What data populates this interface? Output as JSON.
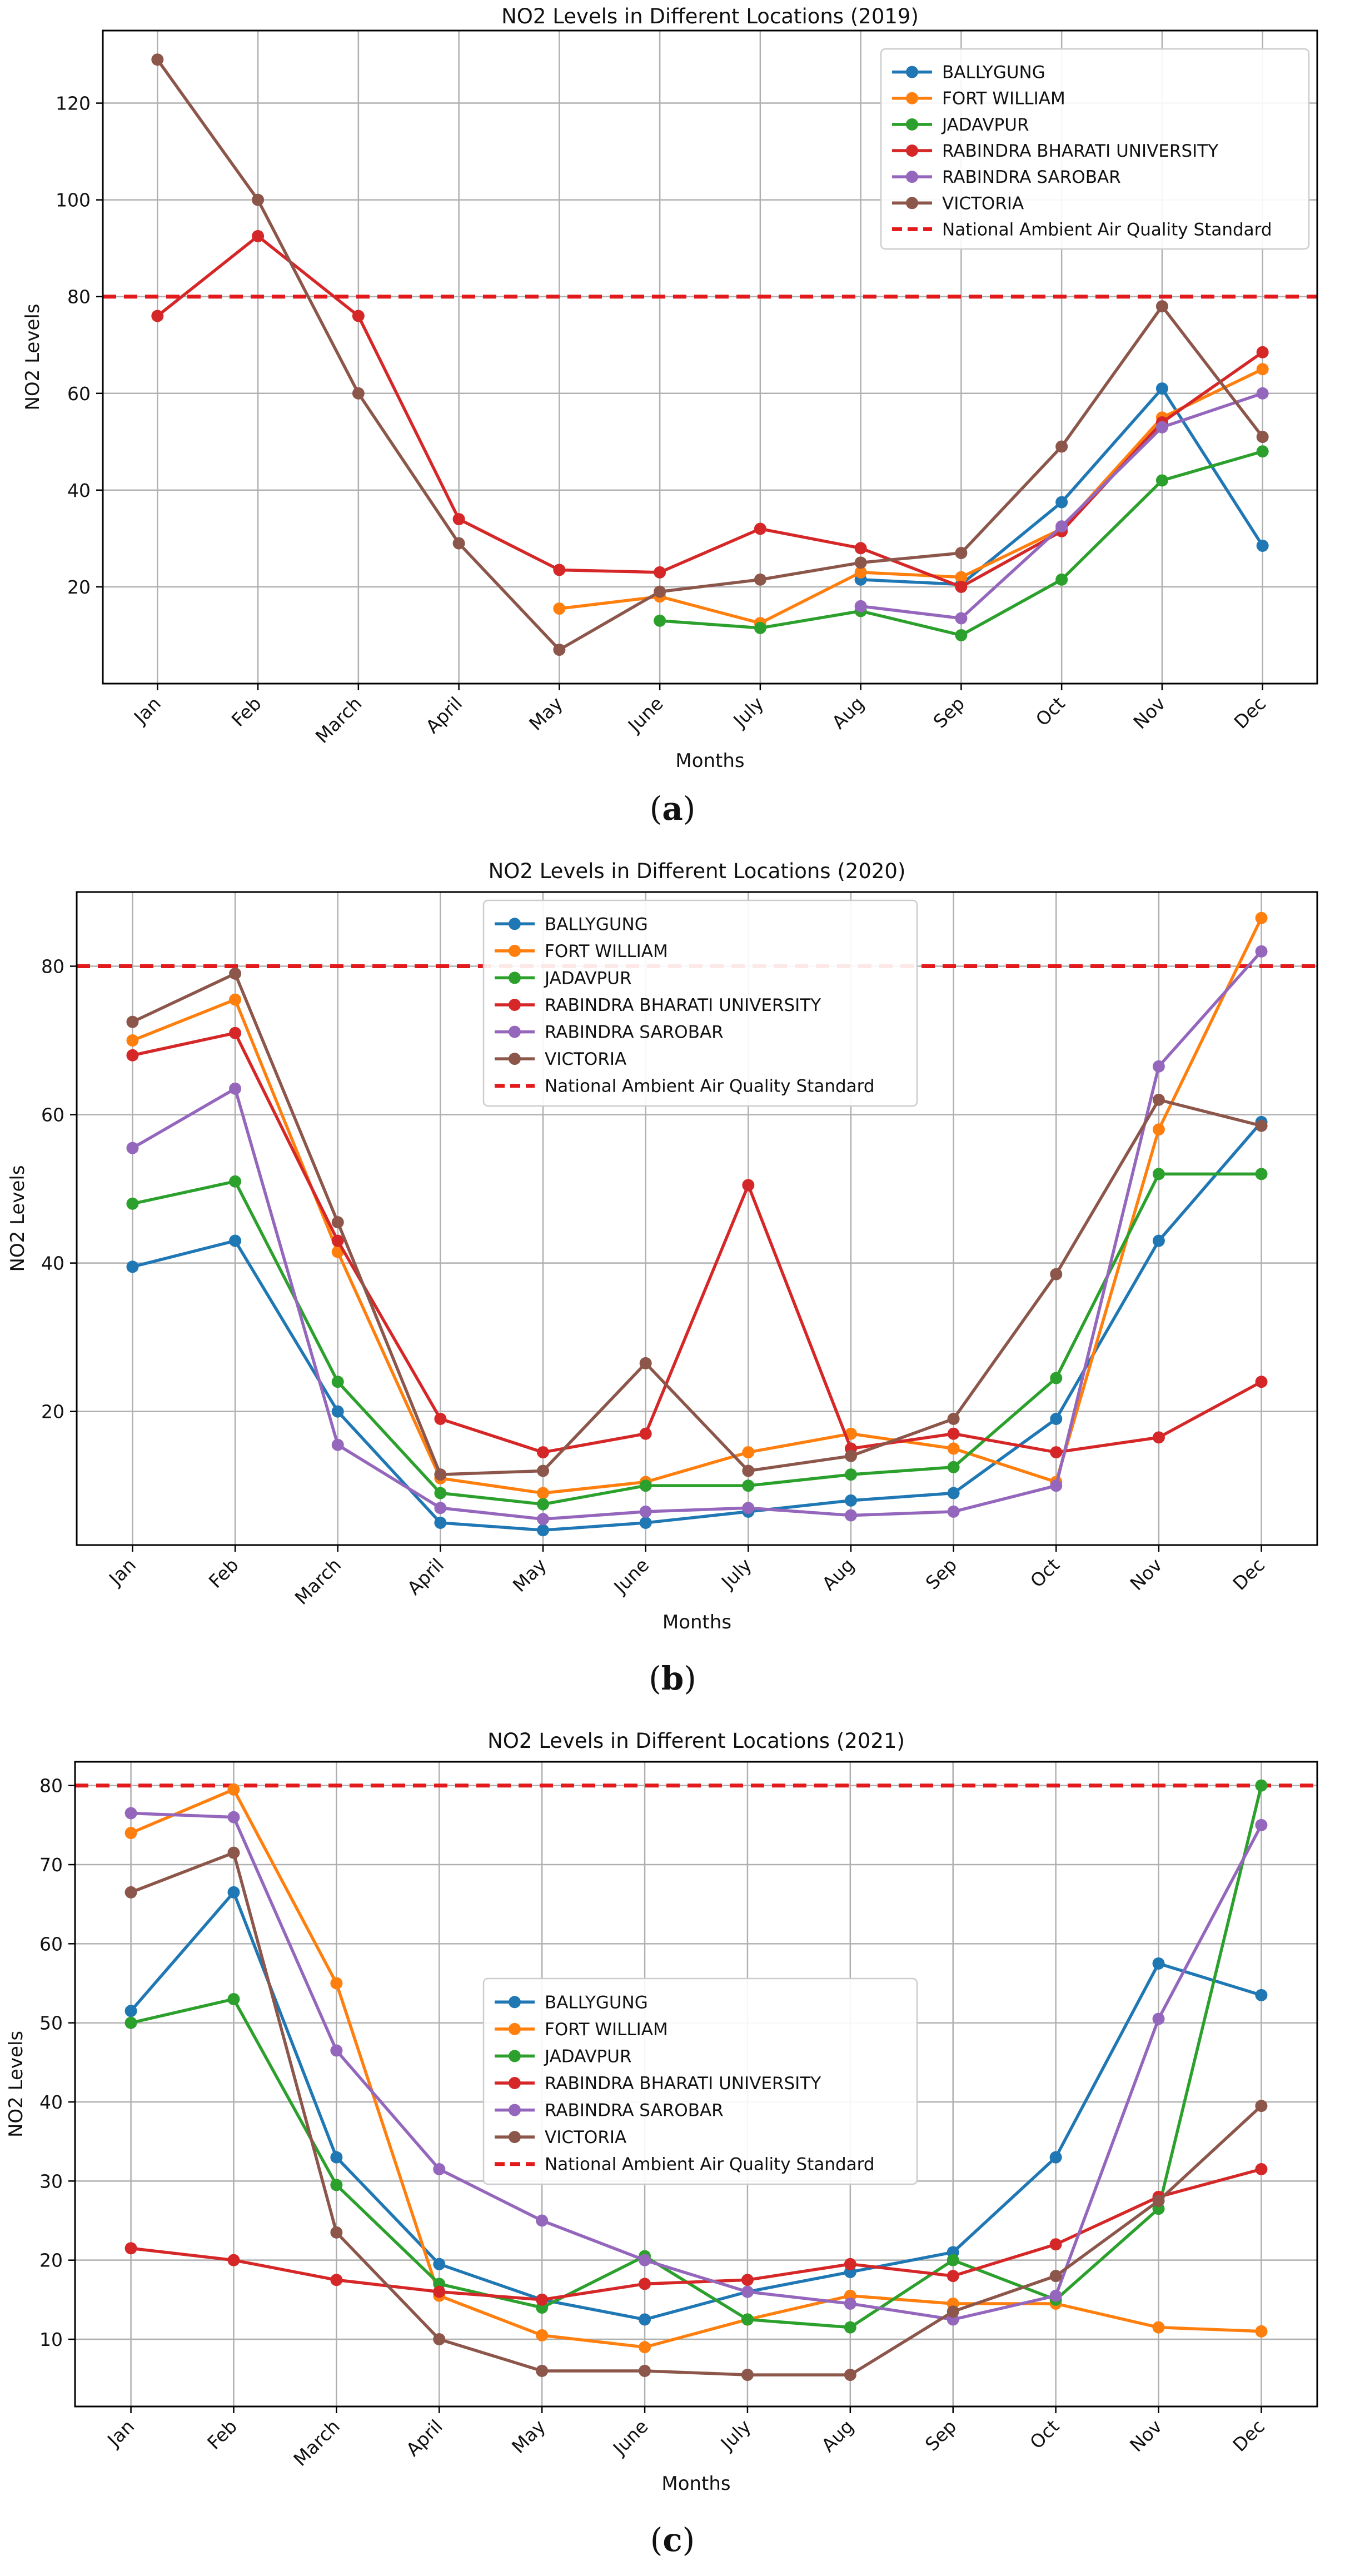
{
  "colors": {
    "BALLYGUNG": "#1f77b4",
    "FORT WILLIAM": "#ff7f0e",
    "JADAVPUR": "#2ca02c",
    "RABINDRA BHARATI UNIVERSITY": "#d62728",
    "RABINDRA SAROBAR": "#9467bd",
    "VICTORIA": "#8c564b",
    "standard": "#e31a1c",
    "grid": "#b0b0b0"
  },
  "chart_data": [
    {
      "type": "line",
      "caption": "a",
      "title": "NO2 Levels in Different Locations (2019)",
      "xlabel": "Months",
      "ylabel": "NO2 Levels",
      "categories": [
        "Jan",
        "Feb",
        "March",
        "April",
        "May",
        "June",
        "July",
        "Aug",
        "Sep",
        "Oct",
        "Nov",
        "Dec"
      ],
      "ylim": [
        0,
        135
      ],
      "yticks": [
        20,
        40,
        60,
        80,
        100,
        120
      ],
      "grid": true,
      "legend_position": "top-right",
      "standard": {
        "label": "National Ambient Air Quality Standard",
        "value": 80
      },
      "series": [
        {
          "name": "BALLYGUNG",
          "values": [
            null,
            null,
            null,
            null,
            null,
            null,
            null,
            21.5,
            20.5,
            37.5,
            61,
            28.5
          ]
        },
        {
          "name": "FORT WILLIAM",
          "values": [
            null,
            null,
            null,
            null,
            15.5,
            18,
            12.5,
            23,
            22,
            32,
            55,
            65
          ]
        },
        {
          "name": "JADAVPUR",
          "values": [
            null,
            null,
            null,
            null,
            null,
            13,
            11.5,
            15,
            10,
            21.5,
            42,
            48
          ]
        },
        {
          "name": "RABINDRA BHARATI UNIVERSITY",
          "values": [
            76,
            92.5,
            76,
            34,
            23.5,
            23,
            32,
            28,
            20,
            31.5,
            54,
            68.5
          ]
        },
        {
          "name": "RABINDRA SAROBAR",
          "values": [
            null,
            null,
            null,
            null,
            null,
            null,
            null,
            16,
            13.5,
            32.5,
            53,
            60
          ]
        },
        {
          "name": "VICTORIA",
          "values": [
            129,
            100,
            60,
            29,
            7,
            19,
            21.5,
            25,
            27,
            49,
            78,
            51
          ]
        }
      ]
    },
    {
      "type": "line",
      "caption": "b",
      "title": "NO2 Levels in Different Locations (2020)",
      "xlabel": "Months",
      "ylabel": "NO2 Levels",
      "categories": [
        "Jan",
        "Feb",
        "March",
        "April",
        "May",
        "June",
        "July",
        "Aug",
        "Sep",
        "Oct",
        "Nov",
        "Dec"
      ],
      "ylim": [
        2,
        90
      ],
      "yticks": [
        20,
        40,
        60,
        80
      ],
      "grid": true,
      "legend_position": "top-center",
      "standard": {
        "label": "National Ambient Air Quality Standard",
        "value": 80
      },
      "series": [
        {
          "name": "BALLYGUNG",
          "values": [
            39.5,
            43,
            20,
            5,
            4,
            5,
            6.5,
            8,
            9,
            19,
            43,
            59
          ]
        },
        {
          "name": "FORT WILLIAM",
          "values": [
            70,
            75.5,
            41.5,
            11,
            9,
            10.5,
            14.5,
            17,
            15,
            10.5,
            58,
            86.5
          ]
        },
        {
          "name": "JADAVPUR",
          "values": [
            48,
            51,
            24,
            9,
            7.5,
            10,
            10,
            11.5,
            12.5,
            24.5,
            52,
            52
          ]
        },
        {
          "name": "RABINDRA BHARATI UNIVERSITY",
          "values": [
            68,
            71,
            43,
            19,
            14.5,
            17,
            50.5,
            15,
            17,
            14.5,
            16.5,
            24
          ]
        },
        {
          "name": "RABINDRA SAROBAR",
          "values": [
            55.5,
            63.5,
            15.5,
            7,
            5.5,
            6.5,
            7,
            6,
            6.5,
            10,
            66.5,
            82
          ]
        },
        {
          "name": "VICTORIA",
          "values": [
            72.5,
            79,
            45.5,
            11.5,
            12,
            26.5,
            12,
            14,
            19,
            38.5,
            62,
            58.5
          ]
        }
      ]
    },
    {
      "type": "line",
      "caption": "c",
      "title": "NO2 Levels in Different Locations (2021)",
      "xlabel": "Months",
      "ylabel": "NO2 Levels",
      "categories": [
        "Jan",
        "Feb",
        "March",
        "April",
        "May",
        "June",
        "July",
        "Aug",
        "Sep",
        "Oct",
        "Nov",
        "Dec"
      ],
      "ylim": [
        1.5,
        83
      ],
      "yticks": [
        10,
        20,
        30,
        40,
        50,
        60,
        70,
        80
      ],
      "grid": true,
      "legend_position": "center",
      "standard": {
        "label": "National Ambient Air Quality Standard",
        "value": 80
      },
      "series": [
        {
          "name": "BALLYGUNG",
          "values": [
            51.5,
            66.5,
            33,
            19.5,
            15,
            12.5,
            16,
            18.5,
            21,
            33,
            57.5,
            53.5
          ]
        },
        {
          "name": "FORT WILLIAM",
          "values": [
            74,
            79.5,
            55,
            15.5,
            10.5,
            9,
            12.5,
            15.5,
            14.5,
            14.5,
            11.5,
            11
          ]
        },
        {
          "name": "JADAVPUR",
          "values": [
            50,
            53,
            29.5,
            17,
            14,
            20.5,
            12.5,
            11.5,
            20,
            15,
            26.5,
            80
          ]
        },
        {
          "name": "RABINDRA BHARATI UNIVERSITY",
          "values": [
            21.5,
            20,
            17.5,
            16,
            15,
            17,
            17.5,
            19.5,
            18,
            22,
            28,
            31.5
          ]
        },
        {
          "name": "RABINDRA SAROBAR",
          "values": [
            76.5,
            76,
            46.5,
            31.5,
            25,
            20,
            16,
            14.5,
            12.5,
            15.5,
            50.5,
            75
          ]
        },
        {
          "name": "VICTORIA",
          "values": [
            66.5,
            71.5,
            23.5,
            10,
            6,
            6,
            5.5,
            5.5,
            13.5,
            18,
            27.5,
            39.5
          ]
        }
      ]
    }
  ]
}
